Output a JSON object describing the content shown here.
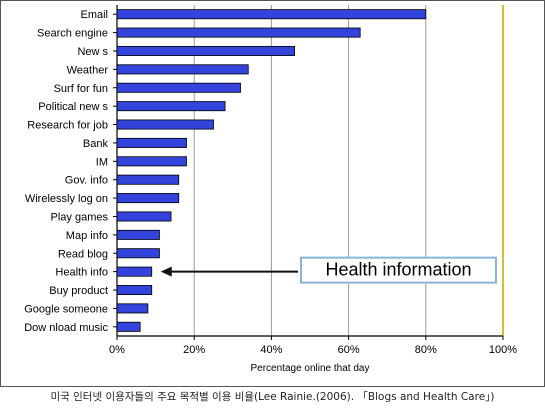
{
  "chart_data": {
    "type": "bar",
    "orientation": "horizontal",
    "categories": [
      "Email",
      "Search engine",
      "New s",
      "Weather",
      "Surf for fun",
      "Political new s",
      "Research for job",
      "Bank",
      "IM",
      "Gov. info",
      "Wirelessly log on",
      "Play games",
      "Map info",
      "Read blog",
      "Health info",
      "Buy product",
      "Google someone",
      "Dow nload music"
    ],
    "values": [
      80,
      63,
      46,
      34,
      32,
      28,
      25,
      18,
      18,
      16,
      16,
      14,
      11,
      11,
      9,
      9,
      8,
      6
    ],
    "xlabel": "Percentage online that day",
    "ylabel": "",
    "xlim": [
      0,
      100
    ],
    "x_ticks": [
      "0%",
      "20%",
      "40%",
      "60%",
      "80%",
      "100%"
    ],
    "grid": true,
    "bar_color": "#3344dd",
    "annotation": {
      "text": "Health information",
      "points_to": "Health info",
      "border_color": "#8ab4d8"
    }
  },
  "caption": "미국 인터넷 이용자들의 주요 목적별 이용 비율(Lee Rainie.(2006). 「Blogs and Health Care」)"
}
